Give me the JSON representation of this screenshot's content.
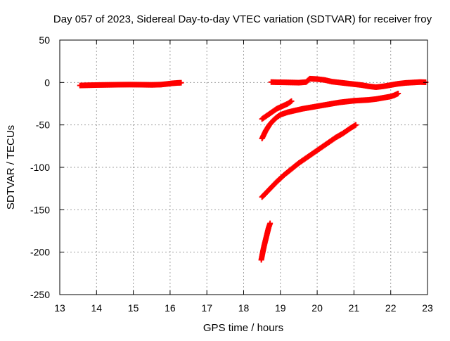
{
  "chart_data": {
    "type": "scatter",
    "title": "Day 057 of 2023, Sidereal Day-to-day VTEC variation (SDTVAR) for receiver froy",
    "xlabel": "GPS time / hours",
    "ylabel": "SDTVAR / TECUs",
    "xlim": [
      13,
      23
    ],
    "ylim": [
      -250,
      50
    ],
    "xticks": [
      "13",
      "14",
      "15",
      "16",
      "17",
      "18",
      "19",
      "20",
      "21",
      "22",
      "23"
    ],
    "yticks": [
      "50",
      "0",
      "-50",
      "-100",
      "-150",
      "-200",
      "-250"
    ],
    "grid": true,
    "marker": "plus",
    "color": "#ff0000",
    "series": [
      {
        "x": [
          13.55,
          13.8,
          14.0,
          14.3,
          14.6,
          14.9,
          15.2,
          15.5,
          15.75,
          15.9,
          16.05,
          16.2,
          16.3
        ],
        "y": [
          -3.5,
          -3.2,
          -3.0,
          -2.8,
          -2.6,
          -2.5,
          -2.6,
          -2.8,
          -2.5,
          -1.8,
          -1.0,
          -0.5,
          -0.3
        ]
      },
      {
        "x": [
          18.75,
          18.9,
          19.1,
          19.3,
          19.5,
          19.7,
          19.8,
          20.0,
          20.2,
          20.4,
          20.6,
          20.8,
          21.0,
          21.2,
          21.4,
          21.6,
          21.8,
          22.0,
          22.2,
          22.4,
          22.6,
          22.8,
          22.95
        ],
        "y": [
          0.5,
          0.3,
          0.2,
          0.0,
          -0.2,
          0.5,
          4.5,
          4.0,
          3.0,
          1.0,
          0.0,
          -1.0,
          -2.0,
          -3.0,
          -4.5,
          -5.5,
          -4.5,
          -3.0,
          -1.5,
          -0.5,
          0.0,
          0.5,
          0.3
        ]
      },
      {
        "x": [
          18.5,
          18.6,
          18.7,
          18.8,
          18.9,
          19.0,
          19.1,
          19.2,
          19.3
        ],
        "y": [
          -43,
          -40,
          -37,
          -34,
          -31,
          -29,
          -27,
          -25,
          -22
        ]
      },
      {
        "x": [
          18.5,
          18.6,
          18.7,
          18.8,
          18.9,
          19.0,
          19.2,
          19.4,
          19.6,
          19.8,
          20.0,
          20.2,
          20.4,
          20.6,
          20.8,
          21.0,
          21.2,
          21.4,
          21.6,
          21.8,
          22.0,
          22.1,
          22.2
        ],
        "y": [
          -66,
          -57,
          -50,
          -45,
          -41,
          -38,
          -35,
          -33,
          -31,
          -29.5,
          -28,
          -26.5,
          -25,
          -23.5,
          -22.5,
          -21.5,
          -21,
          -20.5,
          -19.5,
          -18,
          -16.5,
          -15,
          -13
        ]
      },
      {
        "x": [
          18.5,
          18.7,
          18.9,
          19.1,
          19.3,
          19.5,
          19.7,
          19.9,
          20.1,
          20.3,
          20.5,
          20.7,
          20.9,
          21.05
        ],
        "y": [
          -135,
          -126,
          -117,
          -109,
          -102,
          -95,
          -89,
          -83,
          -77,
          -71,
          -65,
          -60,
          -54,
          -50
        ]
      },
      {
        "x": [
          18.48,
          18.52,
          18.56,
          18.6,
          18.64,
          18.68,
          18.72
        ],
        "y": [
          -209,
          -200,
          -192,
          -185,
          -178,
          -171,
          -166
        ]
      }
    ]
  }
}
